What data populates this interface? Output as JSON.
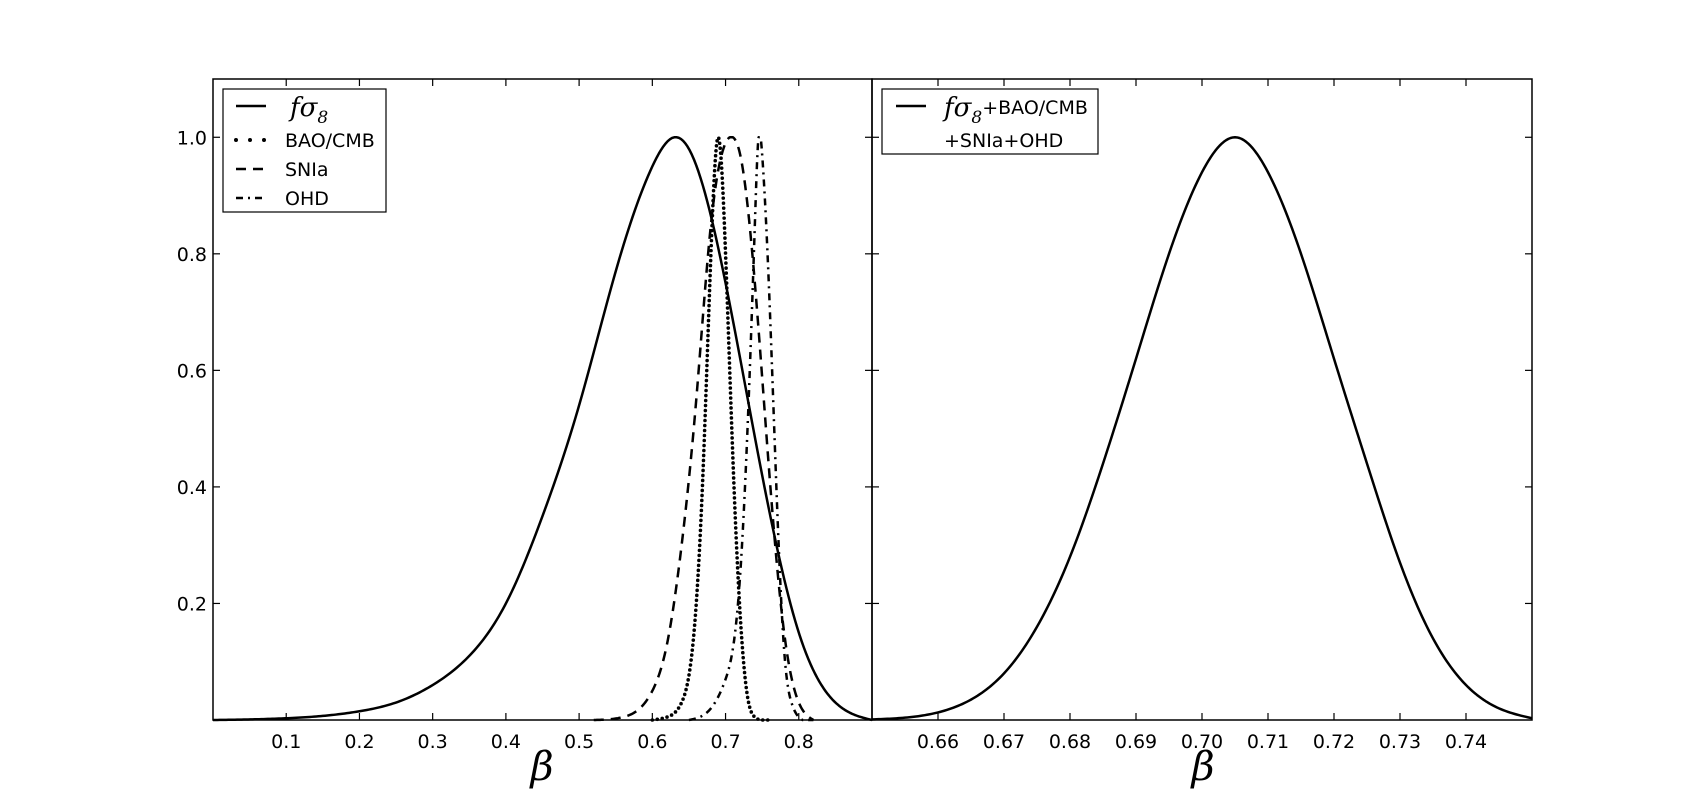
{
  "chart_data": [
    {
      "type": "line",
      "xlabel": "β",
      "ylabel": "",
      "xlim": [
        0.0,
        0.9
      ],
      "ylim": [
        0.0,
        1.1
      ],
      "xticks": [
        "0.1",
        "0.2",
        "0.3",
        "0.4",
        "0.5",
        "0.6",
        "0.7",
        "0.8"
      ],
      "yticks": [
        "0.2",
        "0.4",
        "0.6",
        "0.8",
        "1.0"
      ],
      "legend_position": "top-left",
      "series": [
        {
          "name_main": "fσ",
          "name_sub": "8",
          "style": "solid",
          "x": [
            0.0,
            0.05,
            0.1,
            0.15,
            0.2,
            0.25,
            0.3,
            0.35,
            0.4,
            0.45,
            0.5,
            0.55,
            0.6,
            0.63,
            0.65,
            0.7,
            0.75,
            0.8,
            0.85,
            0.9
          ],
          "y": [
            0.0,
            0.001,
            0.003,
            0.007,
            0.015,
            0.03,
            0.06,
            0.11,
            0.2,
            0.35,
            0.54,
            0.77,
            0.95,
            1.0,
            0.98,
            0.75,
            0.42,
            0.15,
            0.03,
            0.0
          ]
        },
        {
          "name": "BAO/CMB",
          "style": "dotted",
          "x": [
            0.6,
            0.62,
            0.64,
            0.66,
            0.67,
            0.68,
            0.69,
            0.7,
            0.71,
            0.72,
            0.73,
            0.74,
            0.76
          ],
          "y": [
            0.0,
            0.005,
            0.03,
            0.2,
            0.45,
            0.8,
            1.0,
            0.8,
            0.45,
            0.18,
            0.04,
            0.005,
            0.0
          ]
        },
        {
          "name": "SNIa",
          "style": "dashed",
          "x": [
            0.52,
            0.56,
            0.6,
            0.62,
            0.64,
            0.66,
            0.68,
            0.7,
            0.71,
            0.72,
            0.74,
            0.76,
            0.78,
            0.8,
            0.82
          ],
          "y": [
            0.0,
            0.005,
            0.05,
            0.13,
            0.3,
            0.55,
            0.85,
            0.99,
            1.0,
            0.97,
            0.75,
            0.42,
            0.15,
            0.03,
            0.0
          ]
        },
        {
          "name": "OHD",
          "style": "dashdot",
          "x": [
            0.65,
            0.68,
            0.7,
            0.72,
            0.73,
            0.74,
            0.745,
            0.75,
            0.76,
            0.77,
            0.78,
            0.79,
            0.8,
            0.82
          ],
          "y": [
            0.0,
            0.02,
            0.07,
            0.25,
            0.5,
            0.85,
            1.0,
            0.97,
            0.72,
            0.38,
            0.12,
            0.03,
            0.005,
            0.0
          ]
        }
      ]
    },
    {
      "type": "line",
      "xlabel": "β",
      "ylabel": "",
      "xlim": [
        0.65,
        0.75
      ],
      "ylim": [
        0.0,
        1.1
      ],
      "xticks": [
        "0.66",
        "0.67",
        "0.68",
        "0.69",
        "0.70",
        "0.71",
        "0.72",
        "0.73",
        "0.74"
      ],
      "legend_position": "top-left",
      "series": [
        {
          "name_main": "fσ",
          "name_sub": "8",
          "name_suffix": "+BAO/CMB",
          "name_line2": "+SNIa+OHD",
          "style": "solid",
          "x": [
            0.65,
            0.655,
            0.66,
            0.665,
            0.67,
            0.675,
            0.68,
            0.685,
            0.69,
            0.695,
            0.7,
            0.705,
            0.71,
            0.715,
            0.72,
            0.725,
            0.73,
            0.735,
            0.74,
            0.745,
            0.75
          ],
          "y": [
            0.001,
            0.004,
            0.013,
            0.035,
            0.08,
            0.16,
            0.28,
            0.44,
            0.62,
            0.8,
            0.94,
            1.0,
            0.94,
            0.8,
            0.62,
            0.44,
            0.27,
            0.14,
            0.06,
            0.02,
            0.003
          ]
        }
      ]
    }
  ]
}
